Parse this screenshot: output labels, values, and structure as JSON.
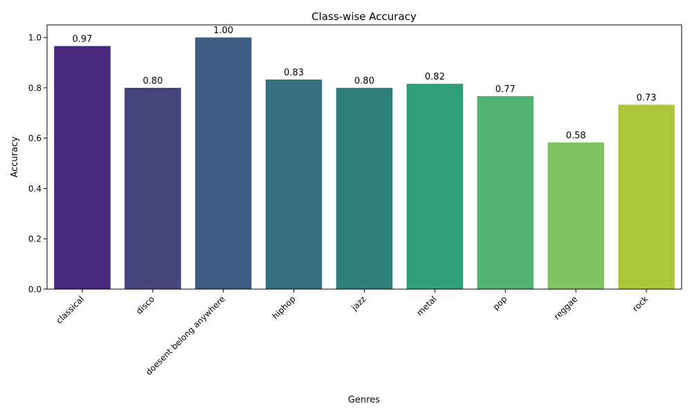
{
  "chart_data": {
    "type": "bar",
    "title": "Class-wise Accuracy",
    "xlabel": "Genres",
    "ylabel": "Accuracy",
    "categories": [
      "classical",
      "disco",
      "doesent belong anywhere",
      "hiphop",
      "jazz",
      "metal",
      "pop",
      "reggae",
      "rock"
    ],
    "values": [
      0.966,
      0.8,
      1.0,
      0.833,
      0.8,
      0.816,
      0.767,
      0.583,
      0.733
    ],
    "value_labels": [
      "0.97",
      "0.80",
      "1.00",
      "0.83",
      "0.80",
      "0.82",
      "0.77",
      "0.58",
      "0.73"
    ],
    "colors": [
      "#482878",
      "#46447d",
      "#3e5d82",
      "#366f7e",
      "#2d807b",
      "#319d7a",
      "#52b274",
      "#80c462",
      "#abc63b"
    ],
    "ylim": [
      0,
      1.05
    ],
    "yticks": [
      0.0,
      0.2,
      0.4,
      0.6,
      0.8,
      1.0
    ],
    "ytick_labels": [
      "0.0",
      "0.2",
      "0.4",
      "0.6",
      "0.8",
      "1.0"
    ],
    "grid": false,
    "legend": "none"
  }
}
